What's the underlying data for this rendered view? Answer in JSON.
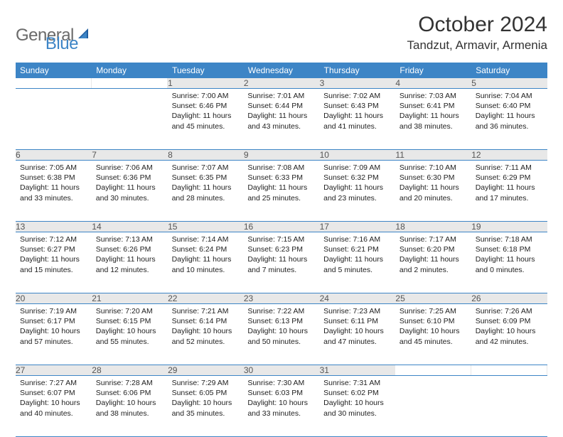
{
  "logo": {
    "word1": "General",
    "word2": "Blue"
  },
  "title": "October 2024",
  "location": "Tandzut, Armavir, Armenia",
  "colors": {
    "header_bg": "#3d85c6",
    "header_text": "#ffffff",
    "daynum_bg": "#e8e8e8",
    "daynum_text": "#555555",
    "grid_line": "#3d85c6",
    "body_text": "#222222",
    "page_bg": "#ffffff",
    "logo_gray": "#6a6a6a",
    "logo_blue": "#3d85c6"
  },
  "typography": {
    "title_fontsize": 30,
    "location_fontsize": 17,
    "dayheader_fontsize": 12,
    "daynum_fontsize": 12,
    "cell_fontsize": 10.5
  },
  "day_headers": [
    "Sunday",
    "Monday",
    "Tuesday",
    "Wednesday",
    "Thursday",
    "Friday",
    "Saturday"
  ],
  "weeks": [
    [
      {
        "n": "",
        "sr": "",
        "ss": "",
        "dl": ""
      },
      {
        "n": "",
        "sr": "",
        "ss": "",
        "dl": ""
      },
      {
        "n": "1",
        "sr": "Sunrise: 7:00 AM",
        "ss": "Sunset: 6:46 PM",
        "dl": "Daylight: 11 hours and 45 minutes."
      },
      {
        "n": "2",
        "sr": "Sunrise: 7:01 AM",
        "ss": "Sunset: 6:44 PM",
        "dl": "Daylight: 11 hours and 43 minutes."
      },
      {
        "n": "3",
        "sr": "Sunrise: 7:02 AM",
        "ss": "Sunset: 6:43 PM",
        "dl": "Daylight: 11 hours and 41 minutes."
      },
      {
        "n": "4",
        "sr": "Sunrise: 7:03 AM",
        "ss": "Sunset: 6:41 PM",
        "dl": "Daylight: 11 hours and 38 minutes."
      },
      {
        "n": "5",
        "sr": "Sunrise: 7:04 AM",
        "ss": "Sunset: 6:40 PM",
        "dl": "Daylight: 11 hours and 36 minutes."
      }
    ],
    [
      {
        "n": "6",
        "sr": "Sunrise: 7:05 AM",
        "ss": "Sunset: 6:38 PM",
        "dl": "Daylight: 11 hours and 33 minutes."
      },
      {
        "n": "7",
        "sr": "Sunrise: 7:06 AM",
        "ss": "Sunset: 6:36 PM",
        "dl": "Daylight: 11 hours and 30 minutes."
      },
      {
        "n": "8",
        "sr": "Sunrise: 7:07 AM",
        "ss": "Sunset: 6:35 PM",
        "dl": "Daylight: 11 hours and 28 minutes."
      },
      {
        "n": "9",
        "sr": "Sunrise: 7:08 AM",
        "ss": "Sunset: 6:33 PM",
        "dl": "Daylight: 11 hours and 25 minutes."
      },
      {
        "n": "10",
        "sr": "Sunrise: 7:09 AM",
        "ss": "Sunset: 6:32 PM",
        "dl": "Daylight: 11 hours and 23 minutes."
      },
      {
        "n": "11",
        "sr": "Sunrise: 7:10 AM",
        "ss": "Sunset: 6:30 PM",
        "dl": "Daylight: 11 hours and 20 minutes."
      },
      {
        "n": "12",
        "sr": "Sunrise: 7:11 AM",
        "ss": "Sunset: 6:29 PM",
        "dl": "Daylight: 11 hours and 17 minutes."
      }
    ],
    [
      {
        "n": "13",
        "sr": "Sunrise: 7:12 AM",
        "ss": "Sunset: 6:27 PM",
        "dl": "Daylight: 11 hours and 15 minutes."
      },
      {
        "n": "14",
        "sr": "Sunrise: 7:13 AM",
        "ss": "Sunset: 6:26 PM",
        "dl": "Daylight: 11 hours and 12 minutes."
      },
      {
        "n": "15",
        "sr": "Sunrise: 7:14 AM",
        "ss": "Sunset: 6:24 PM",
        "dl": "Daylight: 11 hours and 10 minutes."
      },
      {
        "n": "16",
        "sr": "Sunrise: 7:15 AM",
        "ss": "Sunset: 6:23 PM",
        "dl": "Daylight: 11 hours and 7 minutes."
      },
      {
        "n": "17",
        "sr": "Sunrise: 7:16 AM",
        "ss": "Sunset: 6:21 PM",
        "dl": "Daylight: 11 hours and 5 minutes."
      },
      {
        "n": "18",
        "sr": "Sunrise: 7:17 AM",
        "ss": "Sunset: 6:20 PM",
        "dl": "Daylight: 11 hours and 2 minutes."
      },
      {
        "n": "19",
        "sr": "Sunrise: 7:18 AM",
        "ss": "Sunset: 6:18 PM",
        "dl": "Daylight: 11 hours and 0 minutes."
      }
    ],
    [
      {
        "n": "20",
        "sr": "Sunrise: 7:19 AM",
        "ss": "Sunset: 6:17 PM",
        "dl": "Daylight: 10 hours and 57 minutes."
      },
      {
        "n": "21",
        "sr": "Sunrise: 7:20 AM",
        "ss": "Sunset: 6:15 PM",
        "dl": "Daylight: 10 hours and 55 minutes."
      },
      {
        "n": "22",
        "sr": "Sunrise: 7:21 AM",
        "ss": "Sunset: 6:14 PM",
        "dl": "Daylight: 10 hours and 52 minutes."
      },
      {
        "n": "23",
        "sr": "Sunrise: 7:22 AM",
        "ss": "Sunset: 6:13 PM",
        "dl": "Daylight: 10 hours and 50 minutes."
      },
      {
        "n": "24",
        "sr": "Sunrise: 7:23 AM",
        "ss": "Sunset: 6:11 PM",
        "dl": "Daylight: 10 hours and 47 minutes."
      },
      {
        "n": "25",
        "sr": "Sunrise: 7:25 AM",
        "ss": "Sunset: 6:10 PM",
        "dl": "Daylight: 10 hours and 45 minutes."
      },
      {
        "n": "26",
        "sr": "Sunrise: 7:26 AM",
        "ss": "Sunset: 6:09 PM",
        "dl": "Daylight: 10 hours and 42 minutes."
      }
    ],
    [
      {
        "n": "27",
        "sr": "Sunrise: 7:27 AM",
        "ss": "Sunset: 6:07 PM",
        "dl": "Daylight: 10 hours and 40 minutes."
      },
      {
        "n": "28",
        "sr": "Sunrise: 7:28 AM",
        "ss": "Sunset: 6:06 PM",
        "dl": "Daylight: 10 hours and 38 minutes."
      },
      {
        "n": "29",
        "sr": "Sunrise: 7:29 AM",
        "ss": "Sunset: 6:05 PM",
        "dl": "Daylight: 10 hours and 35 minutes."
      },
      {
        "n": "30",
        "sr": "Sunrise: 7:30 AM",
        "ss": "Sunset: 6:03 PM",
        "dl": "Daylight: 10 hours and 33 minutes."
      },
      {
        "n": "31",
        "sr": "Sunrise: 7:31 AM",
        "ss": "Sunset: 6:02 PM",
        "dl": "Daylight: 10 hours and 30 minutes."
      },
      {
        "n": "",
        "sr": "",
        "ss": "",
        "dl": ""
      },
      {
        "n": "",
        "sr": "",
        "ss": "",
        "dl": ""
      }
    ]
  ]
}
